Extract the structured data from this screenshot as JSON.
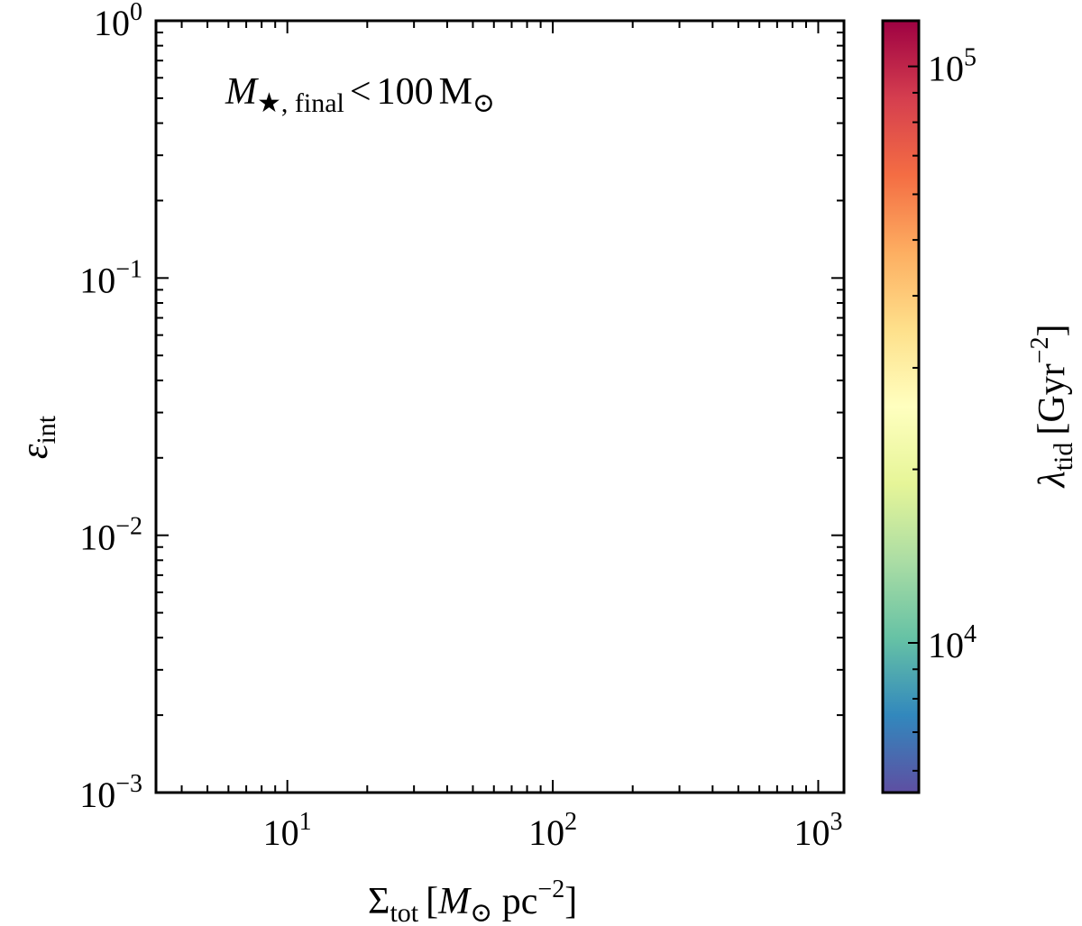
{
  "chart_data": {
    "type": "heatmap",
    "title": "",
    "annotation": {
      "symbol": "M",
      "subscript": "★, final",
      "relation": "<",
      "value": "100",
      "unit": "M",
      "unit_subscript": "⊙"
    },
    "xlabel": {
      "symbol": "Σ",
      "subscript": "tot",
      "unit_open": "[",
      "unit_symbol": "M",
      "unit_subscript": "⊙",
      "unit_rest": " pc",
      "unit_exponent": "−2",
      "unit_close": "]"
    },
    "ylabel": {
      "symbol": "ε",
      "subscript": "int"
    },
    "colorbar_label": {
      "symbol": "λ",
      "subscript": "tid",
      "unit_open": "[Gyr",
      "unit_exponent": "−2",
      "unit_close": "]"
    },
    "xscale": "log",
    "yscale": "log",
    "xlim": [
      3.2,
      1250
    ],
    "ylim": [
      0.001,
      1.0
    ],
    "clim": [
      5500,
      120000
    ],
    "colormap": "Spectral_r",
    "x_ticks": [
      {
        "base": "10",
        "exp": "1",
        "value": 10
      },
      {
        "base": "10",
        "exp": "2",
        "value": 100
      },
      {
        "base": "10",
        "exp": "3",
        "value": 1000
      }
    ],
    "y_ticks": [
      {
        "base": "10",
        "exp": "−3",
        "value": 0.001
      },
      {
        "base": "10",
        "exp": "−2",
        "value": 0.01
      },
      {
        "base": "10",
        "exp": "−1",
        "value": 0.1
      },
      {
        "base": "10",
        "exp": "0",
        "value": 1
      }
    ],
    "colorbar_ticks": [
      {
        "base": "10",
        "exp": "4",
        "value": 10000
      },
      {
        "base": "10",
        "exp": "5",
        "value": 100000
      }
    ],
    "grid": false,
    "bins": {
      "x_log_min": 0.5,
      "x_log_max": 3.1,
      "x_count": 39,
      "y_log_min": -3.0,
      "y_log_max": 0.0,
      "y_count": 50
    },
    "cells_note": "Each cell: [x-bin index, y-bin index (0 = bottom), lambda_tid in Gyr^-2].",
    "cells": [
      [
        0,
        0,
        0
      ]
    ]
  }
}
